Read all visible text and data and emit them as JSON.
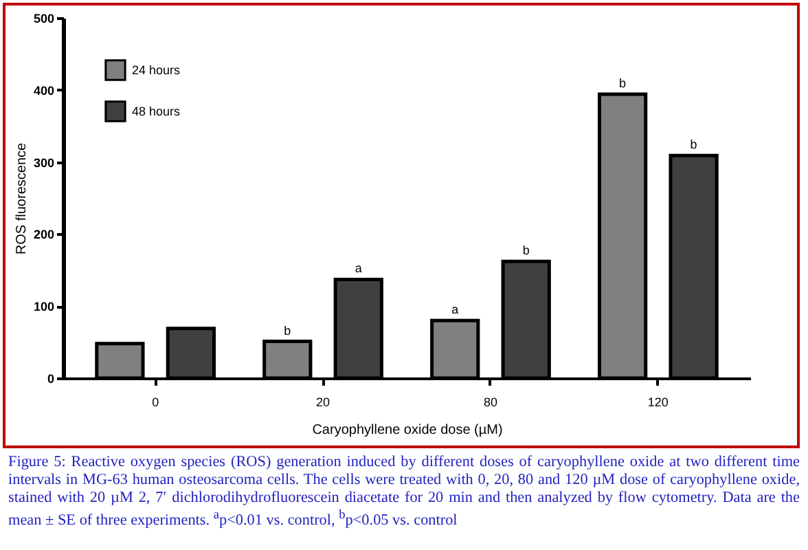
{
  "chart_data": {
    "type": "bar",
    "xlabel": "Caryophyllene oxide dose (µM)",
    "ylabel": "ROS fluorescence",
    "categories": [
      "0",
      "20",
      "80",
      "120"
    ],
    "series": [
      {
        "name": "24 hours",
        "color": "#808080",
        "values": [
          48,
          51,
          80,
          394
        ],
        "value_labels": [
          null,
          "b",
          "a",
          "b"
        ]
      },
      {
        "name": "48 hours",
        "color": "#404040",
        "values": [
          69,
          137,
          162,
          309
        ],
        "value_labels": [
          null,
          "a",
          "b",
          "b"
        ]
      }
    ],
    "ylim": [
      0,
      500
    ],
    "yticks": [
      0,
      100,
      200,
      300,
      400,
      500
    ],
    "grid": false,
    "legend": "top left",
    "annotations": [
      "Figure 5: Reactive oxygen species (ROS) generation induced by different doses of caryophyllene oxide at two different time intervals in MG-63 human osteosarcoma cells. The cells were treated with 0, 20, 80 and 120 µM dose of caryophyllene oxide, stained with 20 µM 2, 7′ dichlorodihydrofluorescein diacetate for 20 min and then analyzed by flow cytometry. Data are the mean ± SE of three experiments. $^{a}$p<0.01 vs. control, $^{b}$p<0.05 vs. control"
    ]
  }
}
